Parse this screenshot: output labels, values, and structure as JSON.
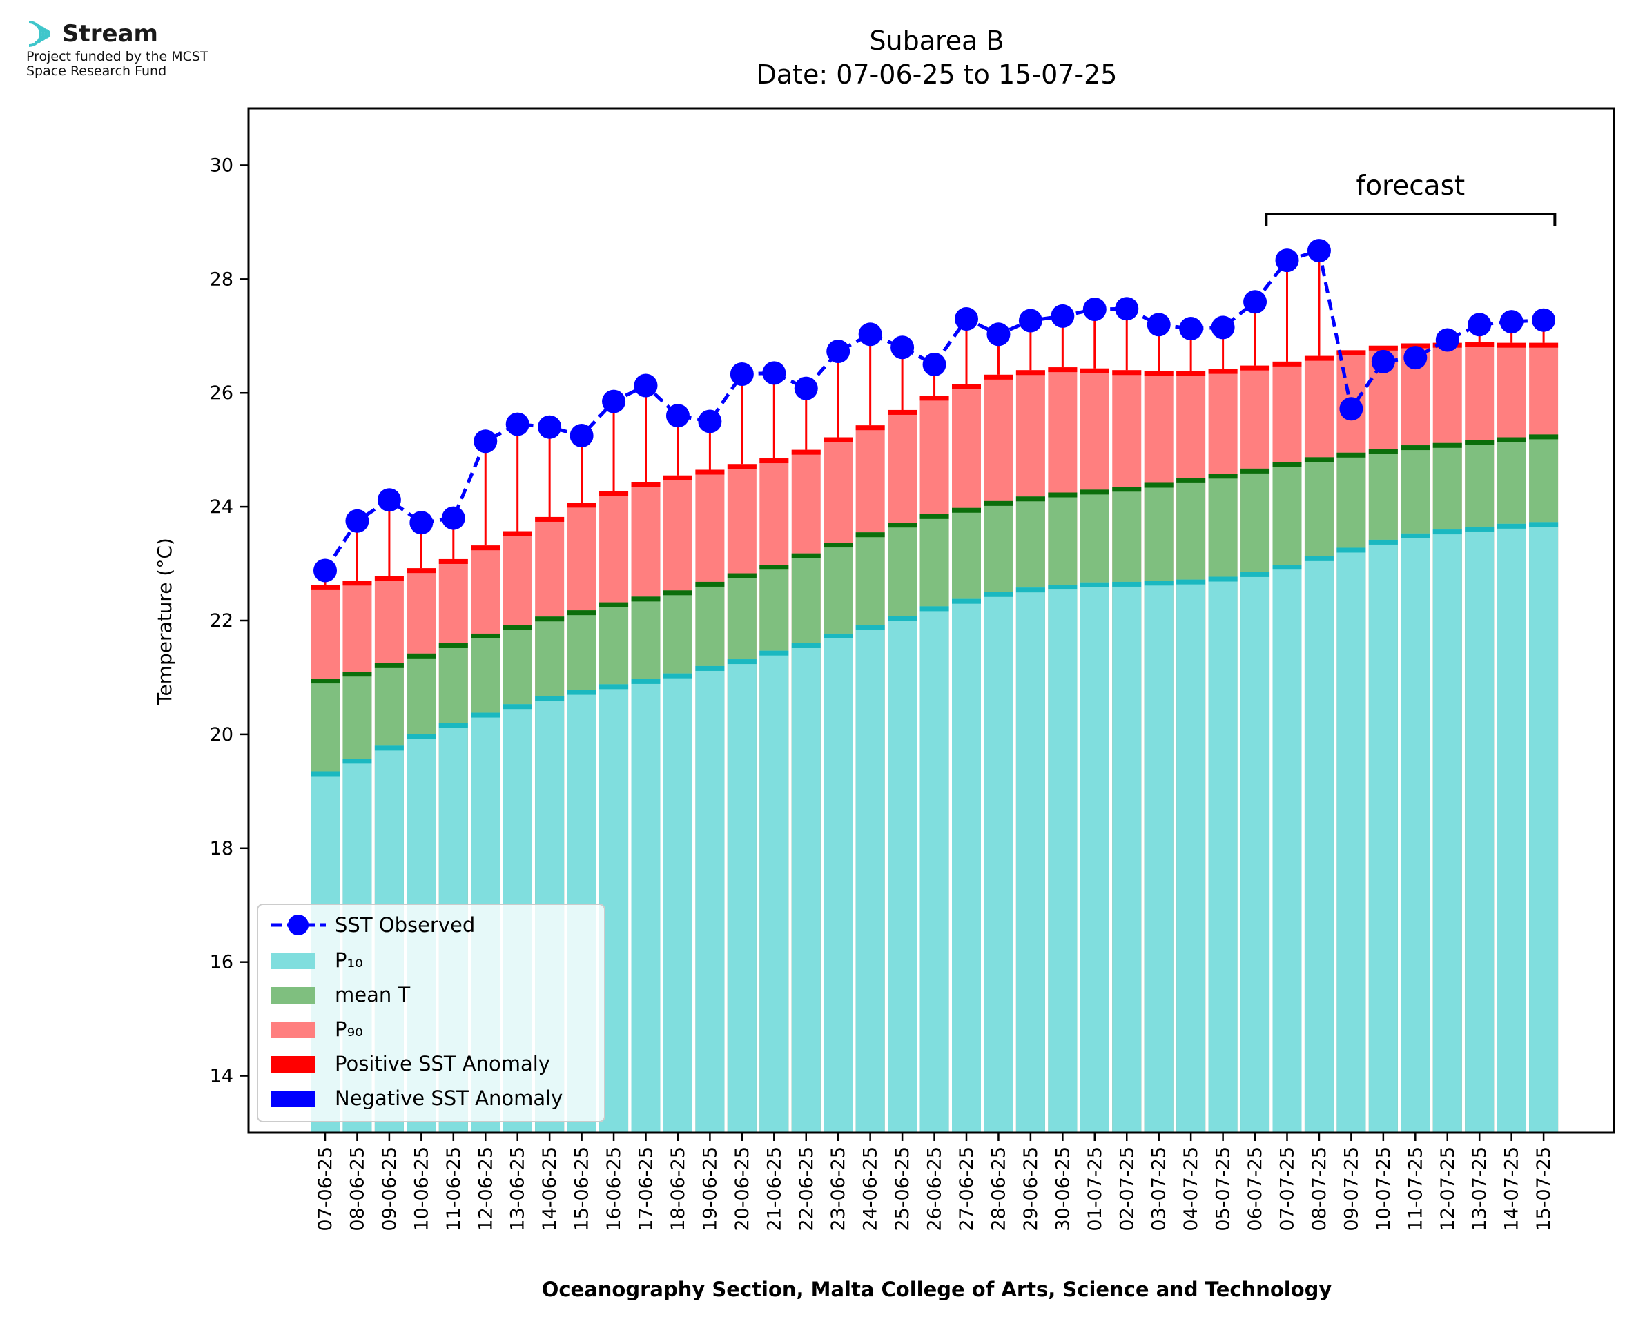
{
  "logo": {
    "name": "Stream",
    "subtitle_line1": "Project funded by the MCST",
    "subtitle_line2": "Space Research Fund"
  },
  "chart_data": {
    "type": "bar",
    "title": "Subarea B",
    "subtitle": "Date: 07-06-25 to 15-07-25",
    "ylabel": "Temperature (°C)",
    "xlabel": "Oceanography Section, Malta College of Arts, Science and Technology",
    "ylim": [
      13,
      31
    ],
    "yticks": [
      14,
      16,
      18,
      20,
      22,
      24,
      26,
      28,
      30
    ],
    "grid": false,
    "legend_position": "lower-left",
    "annotation": "forecast",
    "forecast_range": [
      "06-07-25",
      "15-07-25"
    ],
    "categories": [
      "07-06-25",
      "08-06-25",
      "09-06-25",
      "10-06-25",
      "11-06-25",
      "12-06-25",
      "13-06-25",
      "14-06-25",
      "15-06-25",
      "16-06-25",
      "17-06-25",
      "18-06-25",
      "19-06-25",
      "20-06-25",
      "21-06-25",
      "22-06-25",
      "23-06-25",
      "24-06-25",
      "25-06-25",
      "26-06-25",
      "27-06-25",
      "28-06-25",
      "29-06-25",
      "30-06-25",
      "01-07-25",
      "02-07-25",
      "03-07-25",
      "04-07-25",
      "05-07-25",
      "06-07-25",
      "07-07-25",
      "08-07-25",
      "09-07-25",
      "10-07-25",
      "11-07-25",
      "12-07-25",
      "13-07-25",
      "14-07-25",
      "15-07-25"
    ],
    "series": [
      {
        "name": "SST Observed",
        "color": "#0000ff",
        "values": [
          22.88,
          23.75,
          24.12,
          23.72,
          23.8,
          25.15,
          25.45,
          25.4,
          25.25,
          25.85,
          26.13,
          25.6,
          25.5,
          26.33,
          26.35,
          26.08,
          26.73,
          27.03,
          26.8,
          26.5,
          27.3,
          27.03,
          27.27,
          27.35,
          27.47,
          27.48,
          27.2,
          27.13,
          27.15,
          27.6,
          28.33,
          28.5,
          25.72,
          26.55,
          26.62,
          26.93,
          27.2,
          27.25,
          27.28
        ]
      },
      {
        "name": "P₁₀",
        "color": "#80dede",
        "edge_color": "#1ab8c0",
        "values": [
          19.35,
          19.57,
          19.8,
          20.0,
          20.2,
          20.38,
          20.53,
          20.67,
          20.78,
          20.88,
          20.97,
          21.07,
          21.2,
          21.32,
          21.47,
          21.6,
          21.77,
          21.92,
          22.08,
          22.25,
          22.38,
          22.5,
          22.58,
          22.63,
          22.67,
          22.68,
          22.7,
          22.72,
          22.77,
          22.85,
          22.98,
          23.13,
          23.28,
          23.42,
          23.53,
          23.6,
          23.65,
          23.7,
          23.73
        ]
      },
      {
        "name": "mean T",
        "color": "#7fbf7f",
        "edge_color": "#0b6e0b",
        "values": [
          20.98,
          21.1,
          21.25,
          21.42,
          21.6,
          21.77,
          21.92,
          22.07,
          22.18,
          22.32,
          22.42,
          22.53,
          22.68,
          22.83,
          22.98,
          23.18,
          23.37,
          23.55,
          23.72,
          23.87,
          23.98,
          24.1,
          24.18,
          24.25,
          24.3,
          24.35,
          24.42,
          24.5,
          24.58,
          24.67,
          24.78,
          24.87,
          24.95,
          25.02,
          25.08,
          25.12,
          25.17,
          25.22,
          25.27
        ]
      },
      {
        "name": "P₉₀",
        "color": "#ff7f7f",
        "edge_color": "#ff0000",
        "values": [
          22.62,
          22.7,
          22.78,
          22.92,
          23.08,
          23.32,
          23.57,
          23.82,
          24.07,
          24.27,
          24.43,
          24.55,
          24.65,
          24.75,
          24.85,
          25.0,
          25.22,
          25.43,
          25.7,
          25.95,
          26.15,
          26.32,
          26.4,
          26.45,
          26.43,
          26.4,
          26.38,
          26.38,
          26.42,
          26.48,
          26.55,
          26.65,
          26.75,
          26.83,
          26.87,
          26.88,
          26.9,
          26.88,
          26.88
        ]
      },
      {
        "name": "Positive SST Anomaly",
        "color": "#ff0000"
      },
      {
        "name": "Negative SST Anomaly",
        "color": "#0000ff"
      }
    ]
  }
}
